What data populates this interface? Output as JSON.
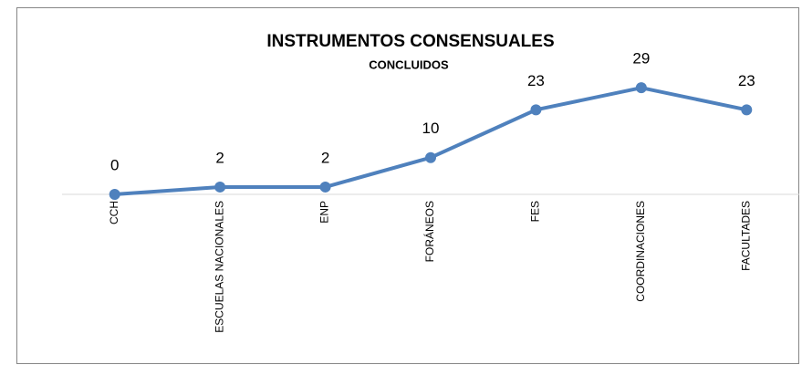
{
  "chart_data": {
    "type": "line",
    "title": "INSTRUMENTOS CONSENSUALES",
    "subtitle": "CONCLUIDOS",
    "categories": [
      "CCH",
      "ESCUELAS NACIONALES",
      "ENP",
      "FORÁNEOS",
      "FES",
      "COORDINACIONES",
      "FACULTADES"
    ],
    "values": [
      0,
      2,
      2,
      10,
      23,
      29,
      23
    ],
    "color": "#4f81bd",
    "ylim": [
      0,
      35
    ]
  }
}
